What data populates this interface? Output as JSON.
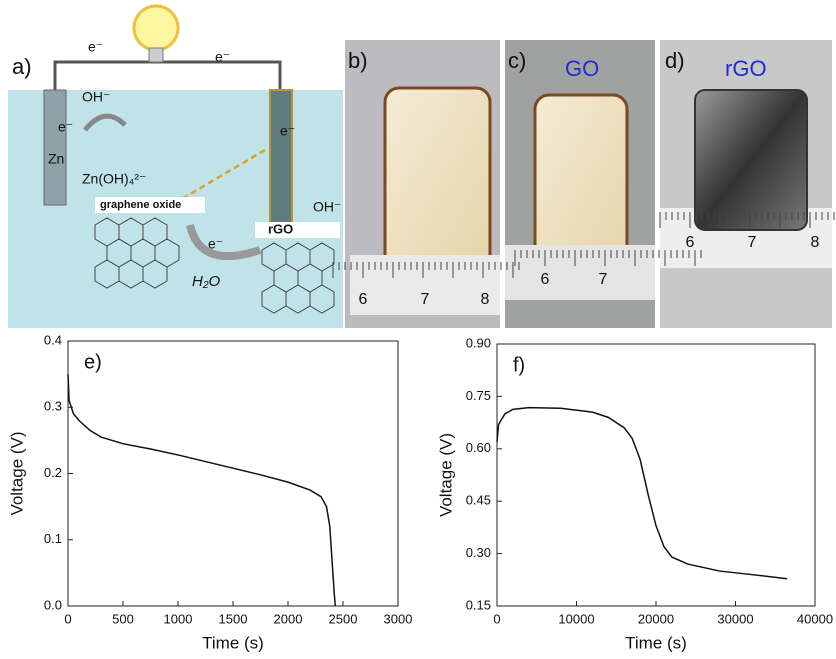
{
  "schematic": {
    "panel": "a)",
    "labels": [
      "e⁻",
      "e⁻",
      "e⁻",
      "OH⁻",
      "Zn",
      "Zn(OH)₄²⁻",
      "graphene oxide",
      "e⁻",
      "OH⁻",
      "rGO",
      "e⁻",
      "H₂O"
    ]
  },
  "photos": [
    {
      "panel": "b)",
      "ruler": [
        "6",
        "7",
        "8"
      ]
    },
    {
      "panel": "c)",
      "label": "GO",
      "ruler": [
        "6",
        "7"
      ]
    },
    {
      "panel": "d)",
      "label": "rGO",
      "ruler": [
        "6",
        "7",
        "8"
      ]
    }
  ],
  "chart_data": [
    {
      "type": "line",
      "annotation": "e)",
      "x_label": "Time (s)",
      "y_label": "Voltage (V)",
      "x": [
        0,
        10,
        50,
        100,
        200,
        300,
        500,
        750,
        1000,
        1250,
        1500,
        1750,
        2000,
        2200,
        2300,
        2350,
        2380,
        2400,
        2420,
        2430
      ],
      "series": [
        {
          "color": "#111111",
          "values": [
            0.35,
            0.31,
            0.29,
            0.28,
            0.265,
            0.255,
            0.245,
            0.237,
            0.228,
            0.218,
            0.208,
            0.198,
            0.187,
            0.175,
            0.165,
            0.15,
            0.12,
            0.07,
            0.02,
            0
          ]
        }
      ],
      "xlim": [
        0,
        3000
      ],
      "xticks": [
        0,
        500,
        1000,
        1500,
        2000,
        2500,
        3000
      ],
      "ylim": [
        0,
        0.4
      ],
      "yticks": [
        {
          "value": 0,
          "label": "0.0"
        },
        0.1,
        0.2,
        0.3,
        0.4
      ]
    },
    {
      "type": "line",
      "annotation": "f)",
      "x_label": "Time (s)",
      "y_label": "Voltage (V)",
      "x": [
        0,
        200,
        1000,
        2000,
        4000,
        8000,
        12000,
        14000,
        16000,
        17000,
        18000,
        19000,
        20000,
        21000,
        22000,
        24000,
        28000,
        32000,
        36500
      ],
      "series": [
        {
          "color": "#111111",
          "values": [
            0.62,
            0.67,
            0.7,
            0.713,
            0.718,
            0.716,
            0.705,
            0.69,
            0.66,
            0.63,
            0.57,
            0.47,
            0.38,
            0.32,
            0.29,
            0.27,
            0.25,
            0.24,
            0.228
          ]
        }
      ],
      "xlim": [
        0,
        40000
      ],
      "xticks": [
        0,
        10000,
        20000,
        30000,
        40000
      ],
      "ylim": [
        0.15,
        0.9
      ],
      "yticks": [
        {
          "value": 0.15,
          "label": "0.15"
        },
        {
          "value": 0.3,
          "label": "0.30"
        },
        {
          "value": 0.45,
          "label": "0.45"
        },
        {
          "value": 0.6,
          "label": "0.60"
        },
        {
          "value": 0.75,
          "label": "0.75"
        },
        {
          "value": 0.9,
          "label": "0.90"
        }
      ]
    }
  ]
}
